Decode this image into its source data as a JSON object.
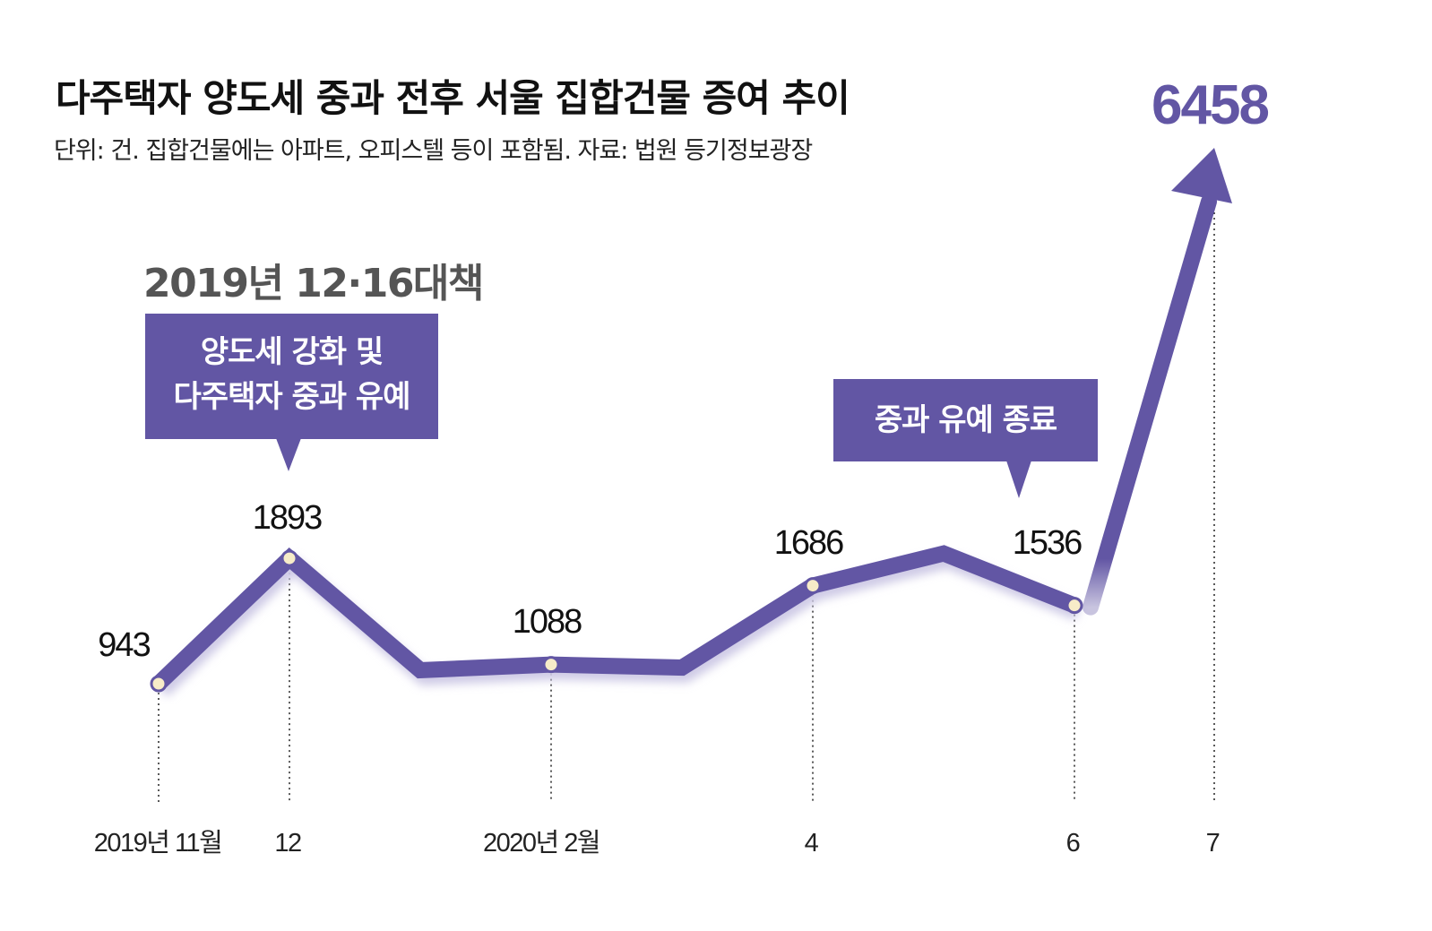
{
  "title": "다주택자 양도세 중과 전후 서울 집합건물 증여 추이",
  "subtitle": "단위: 건. 집합건물에는 아파트, 오피스텔 등이 포함됨. 자료: 법원 등기정보광장",
  "annotations": {
    "policy_heading": "2019년 12·16대책",
    "box1_line1": "양도세 강화 및",
    "box1_line2": "다주택자 중과 유예",
    "box2": "중과 유예 종료"
  },
  "colors": {
    "line": "#6256a4",
    "marker_fill": "#f7ecc8",
    "highlight_value": "#6256a4"
  },
  "chart_data": {
    "type": "line",
    "title": "다주택자 양도세 중과 전후 서울 집합건물 증여 추이",
    "xlabel": "",
    "ylabel": "",
    "unit": "건",
    "grid": false,
    "x": [
      "2019-11",
      "2019-12",
      "2020-01",
      "2020-02",
      "2020-03",
      "2020-04",
      "2020-05",
      "2020-06",
      "2020-07"
    ],
    "tick_labels": [
      {
        "x": "2019-11",
        "label": "2019년 11월"
      },
      {
        "x": "2019-12",
        "label": "12"
      },
      {
        "x": "2020-02",
        "label": "2020년 2월"
      },
      {
        "x": "2020-04",
        "label": "4"
      },
      {
        "x": "2020-06",
        "label": "6"
      },
      {
        "x": "2020-07",
        "label": "7"
      }
    ],
    "values": [
      943,
      1893,
      1045,
      1088,
      1065,
      1686,
      1930,
      1536,
      6458
    ],
    "data_labels": [
      {
        "x": "2019-11",
        "label": "943"
      },
      {
        "x": "2019-12",
        "label": "1893"
      },
      {
        "x": "2020-02",
        "label": "1088"
      },
      {
        "x": "2020-04",
        "label": "1686"
      },
      {
        "x": "2020-06",
        "label": "1536"
      },
      {
        "x": "2020-07",
        "label": "6458"
      }
    ]
  }
}
